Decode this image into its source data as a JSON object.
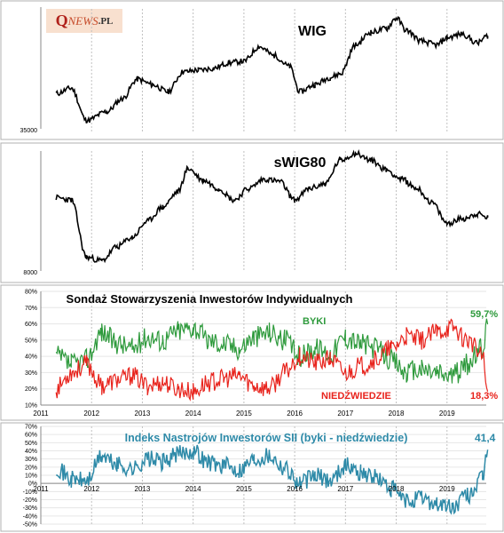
{
  "logo": {
    "q": "Q",
    "news": "NEWS",
    "pl": ".PL"
  },
  "panels": {
    "wig": {
      "title": "WIG",
      "ymin_label": "35000"
    },
    "swig": {
      "title": "sWIG80",
      "ymin_label": "8000"
    },
    "survey": {
      "title": "Sondaż Stowarzyszenia Inwestorów Indywidualnych",
      "bulls_label": "BYKI",
      "bears_label": "NIEDŹWIEDZIE",
      "bulls_last": "59,7%",
      "bears_last": "18,3%"
    },
    "index": {
      "title": "Indeks Nastrojów Inwestorów SII (byki - niedźwiedzie)",
      "last": "41,4"
    }
  },
  "colors": {
    "bulls": "#2e9a3c",
    "bears": "#e8231c",
    "index": "#2e8aa8",
    "price": "#000000",
    "grid": "#c0c0c0"
  },
  "chart_data": [
    {
      "type": "line",
      "title": "WIG",
      "x": [
        2011.3,
        2011.6,
        2011.9,
        2012.3,
        2012.6,
        2012.9,
        2013.2,
        2013.5,
        2013.8,
        2014.1,
        2014.4,
        2014.7,
        2015.0,
        2015.3,
        2015.6,
        2015.9,
        2016.1,
        2016.4,
        2016.7,
        2016.9,
        2017.2,
        2017.5,
        2017.8,
        2018.0,
        2018.2,
        2018.5,
        2018.8,
        2019.0,
        2019.3,
        2019.6,
        2019.8
      ],
      "series": [
        {
          "values": [
            44500,
            46000,
            37000,
            39500,
            43000,
            48500,
            47000,
            45000,
            50500,
            51000,
            51500,
            53000,
            53500,
            57500,
            55000,
            52000,
            45000,
            47000,
            49000,
            50000,
            58000,
            61500,
            62500,
            65500,
            62000,
            59000,
            58000,
            60000,
            61000,
            58500,
            60500
          ]
        }
      ],
      "y_axis_label": "35000",
      "ylim": [
        34500,
        67000
      ],
      "grid": false
    },
    {
      "type": "line",
      "title": "sWIG80",
      "x": [
        2011.3,
        2011.6,
        2011.9,
        2012.2,
        2012.5,
        2012.8,
        2013.1,
        2013.4,
        2013.7,
        2013.9,
        2014.2,
        2014.5,
        2014.8,
        2015.1,
        2015.4,
        2015.7,
        2016.0,
        2016.3,
        2016.6,
        2016.9,
        2017.2,
        2017.5,
        2017.8,
        2018.1,
        2018.4,
        2018.7,
        2019.0,
        2019.3,
        2019.6,
        2019.8
      ],
      "series": [
        {
          "values": [
            14000,
            13800,
            8900,
            8600,
            9800,
            10600,
            12000,
            13200,
            14500,
            16500,
            15500,
            14800,
            13800,
            14800,
            15600,
            15400,
            13800,
            14800,
            15200,
            17200,
            17800,
            17200,
            16400,
            15600,
            14800,
            13600,
            11800,
            12200,
            12600,
            12300
          ]
        }
      ],
      "y_axis_label": "8000",
      "ylim": [
        7800,
        18000
      ],
      "grid": false
    },
    {
      "type": "line",
      "title": "Sondaż Stowarzyszenia Inwestorów Indywidualnych",
      "x": [
        2011.3,
        2011.6,
        2011.9,
        2012.2,
        2012.5,
        2012.8,
        2013.1,
        2013.4,
        2013.7,
        2014.0,
        2014.3,
        2014.6,
        2014.9,
        2015.2,
        2015.5,
        2015.8,
        2016.1,
        2016.4,
        2016.7,
        2017.0,
        2017.3,
        2017.6,
        2017.9,
        2018.2,
        2018.5,
        2018.8,
        2019.1,
        2019.4,
        2019.7,
        2019.8
      ],
      "series": [
        {
          "name": "BYKI",
          "values": [
            40,
            35,
            38,
            55,
            48,
            45,
            52,
            50,
            56,
            58,
            50,
            48,
            45,
            52,
            55,
            50,
            40,
            45,
            42,
            52,
            48,
            45,
            38,
            30,
            32,
            30,
            28,
            35,
            45,
            59.7
          ]
        },
        {
          "name": "NIEDŹWIEDZIE",
          "values": [
            20,
            30,
            35,
            22,
            25,
            28,
            22,
            24,
            20,
            18,
            24,
            26,
            28,
            22,
            20,
            30,
            40,
            36,
            38,
            30,
            34,
            38,
            45,
            52,
            50,
            55,
            58,
            50,
            40,
            18.3
          ]
        }
      ],
      "x_ticks": [
        "2011",
        "2012",
        "2013",
        "2014",
        "2015",
        "2016",
        "2017",
        "2018",
        "2019"
      ],
      "y_ticks": [
        "10%",
        "20%",
        "30%",
        "40%",
        "50%",
        "60%",
        "70%",
        "80%"
      ],
      "ylim": [
        10,
        80
      ],
      "grid": true
    },
    {
      "type": "line",
      "title": "Indeks Nastrojów Inwestorów SII (byki - niedźwiedzie)",
      "x": [
        2011.3,
        2011.6,
        2011.9,
        2012.2,
        2012.5,
        2012.8,
        2013.1,
        2013.4,
        2013.7,
        2014.0,
        2014.3,
        2014.6,
        2014.9,
        2015.2,
        2015.5,
        2015.8,
        2016.1,
        2016.4,
        2016.7,
        2017.0,
        2017.3,
        2017.6,
        2017.9,
        2018.2,
        2018.5,
        2018.8,
        2019.1,
        2019.4,
        2019.7,
        2019.8
      ],
      "series": [
        {
          "values": [
            20,
            5,
            3,
            33,
            23,
            17,
            30,
            26,
            36,
            40,
            26,
            22,
            17,
            30,
            35,
            20,
            0,
            9,
            4,
            22,
            14,
            7,
            -7,
            -22,
            -18,
            -25,
            -30,
            -15,
            5,
            41.4
          ]
        }
      ],
      "x_ticks": [
        "2011",
        "2012",
        "2013",
        "2014",
        "2015",
        "2016",
        "2017",
        "2018",
        "2019"
      ],
      "y_ticks": [
        "-50%",
        "-40%",
        "-30%",
        "-20%",
        "-10%",
        "0%",
        "10%",
        "20%",
        "30%",
        "40%",
        "50%",
        "60%",
        "70%"
      ],
      "ylim": [
        -50,
        70
      ],
      "grid": true
    }
  ]
}
